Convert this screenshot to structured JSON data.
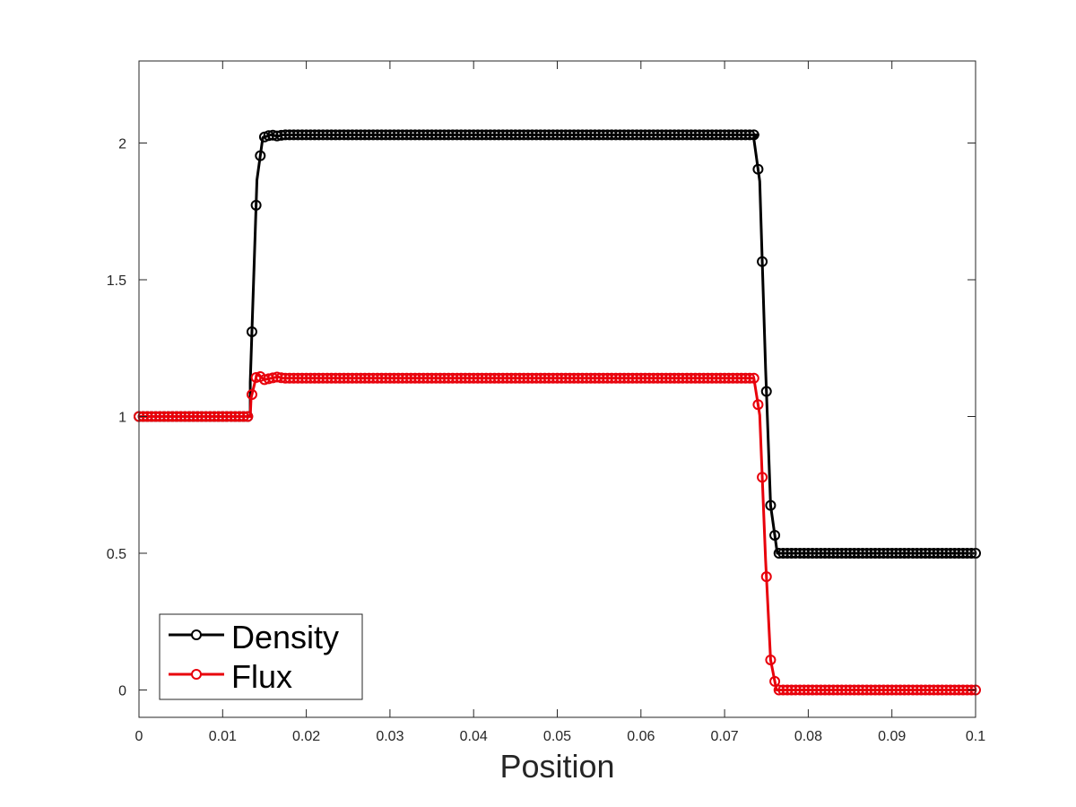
{
  "chart_data": {
    "type": "line",
    "title": "",
    "xlabel": "Position",
    "ylabel": "",
    "xlim": [
      0,
      0.1
    ],
    "ylim": [
      -0.1,
      2.3
    ],
    "xticks": [
      "0",
      "0.01",
      "0.02",
      "0.03",
      "0.04",
      "0.05",
      "0.06",
      "0.07",
      "0.08",
      "0.09",
      "0.1"
    ],
    "xtick_values": [
      0,
      0.01,
      0.02,
      0.03,
      0.04,
      0.05,
      0.06,
      0.07,
      0.08,
      0.09,
      0.1
    ],
    "yticks": [
      "0",
      "0.5",
      "1",
      "1.5",
      "2"
    ],
    "ytick_values": [
      0,
      0.5,
      1,
      1.5,
      2
    ],
    "grid": false,
    "legend_position": "bottom-left",
    "marker": "circle",
    "series": [
      {
        "name": "Density",
        "color": "#000000",
        "points": [
          [
            0.0,
            1.0
          ],
          [
            0.0133,
            1.0
          ],
          [
            0.0133,
            1.125
          ],
          [
            0.0141,
            1.865
          ],
          [
            0.0148,
            2.02
          ],
          [
            0.0158,
            2.03
          ],
          [
            0.0166,
            2.025
          ],
          [
            0.0172,
            2.03
          ],
          [
            0.074,
            2.03
          ],
          [
            0.0735,
            2.015
          ],
          [
            0.0742,
            1.86
          ],
          [
            0.0749,
            1.175
          ],
          [
            0.0755,
            0.675
          ],
          [
            0.0763,
            0.5
          ],
          [
            0.1,
            0.5
          ]
        ]
      },
      {
        "name": "Flux",
        "color": "#e8000b",
        "points": [
          [
            0.0,
            1.0
          ],
          [
            0.0133,
            1.0
          ],
          [
            0.0134,
            1.068
          ],
          [
            0.0141,
            1.155
          ],
          [
            0.015,
            1.135
          ],
          [
            0.0158,
            1.14
          ],
          [
            0.0166,
            1.145
          ],
          [
            0.0172,
            1.14
          ],
          [
            0.073,
            1.14
          ],
          [
            0.0735,
            1.14
          ],
          [
            0.0742,
            1.005
          ],
          [
            0.0749,
            0.475
          ],
          [
            0.0755,
            0.11
          ],
          [
            0.0762,
            0.0
          ],
          [
            0.1,
            0.0
          ]
        ]
      }
    ]
  }
}
